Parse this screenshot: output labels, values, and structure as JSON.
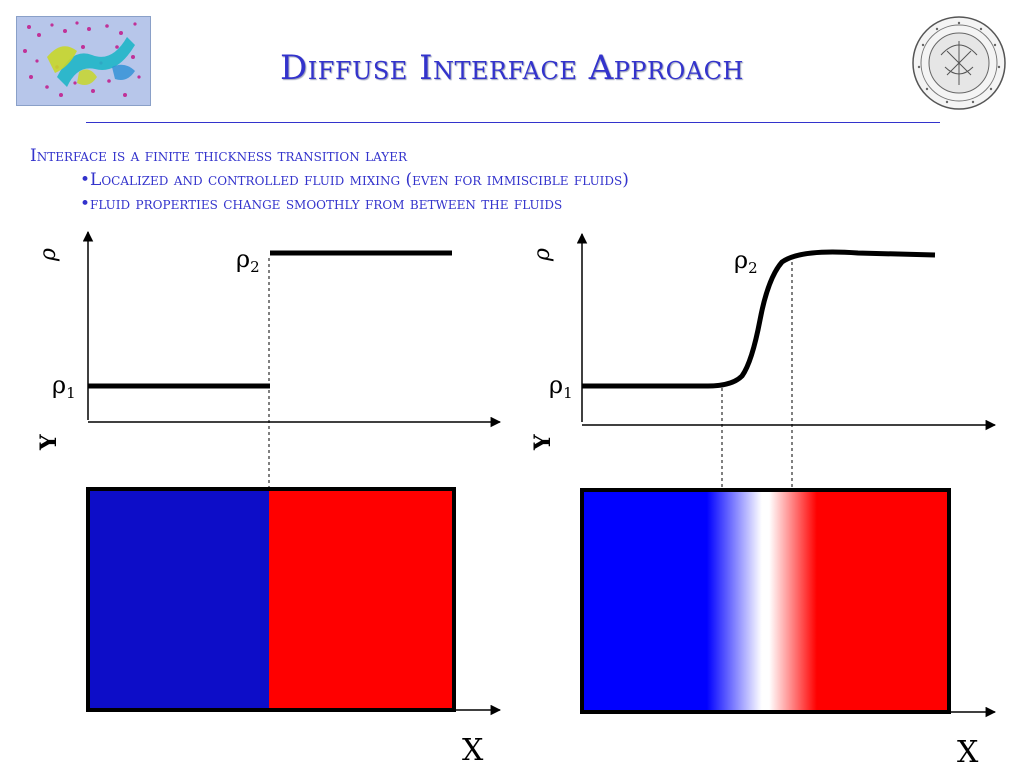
{
  "slide": {
    "title": "Diffuse Interface Approach",
    "bullets": {
      "main": "Interface is a finite thickness transition layer",
      "sub": [
        "•Localized and controlled fluid mixing (even for immiscible fluids)",
        "•fluid properties change smoothly from between the fluids"
      ]
    }
  },
  "diagrams": {
    "sharp": {
      "rho_axis_label": "ρ",
      "rho1_symbol": "ρ",
      "rho1_subscript": "1",
      "rho2_symbol": "ρ",
      "rho2_subscript": "2",
      "y_axis_label": "Y",
      "x_axis_label": "X"
    },
    "diffuse": {
      "rho_axis_label": "ρ",
      "rho1_symbol": "ρ",
      "rho1_subscript": "1",
      "rho2_symbol": "ρ",
      "rho2_subscript": "2",
      "y_axis_label": "Y",
      "x_axis_label": "X"
    }
  },
  "colors": {
    "title": "#3333cc",
    "fluid1_sharp": "#0d0dc8",
    "fluid1": "#0000ff",
    "fluid2": "#ff0000",
    "interface": "#ffffff"
  }
}
